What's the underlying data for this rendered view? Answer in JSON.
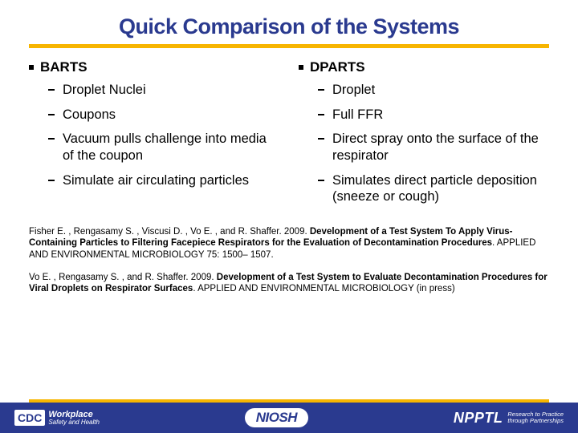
{
  "title": "Quick Comparison of the Systems",
  "colors": {
    "title": "#2a3a8f",
    "accent": "#f7b500",
    "footer_bg": "#2a3a8f",
    "text": "#000000",
    "bg": "#ffffff"
  },
  "left": {
    "head": "BARTS",
    "items": [
      "Droplet Nuclei",
      "Coupons",
      "Vacuum pulls challenge into media of the coupon",
      "Simulate air circulating particles"
    ]
  },
  "right": {
    "head": "DPARTS",
    "items": [
      "Droplet",
      "Full FFR",
      "Direct spray onto the surface of the respirator",
      "Simulates direct particle deposition (sneeze or cough)"
    ]
  },
  "ref1": {
    "authors": "Fisher E. , Rengasamy S. , Viscusi D. , Vo E. , and R. Shaffer. 2009. ",
    "title": "Development of a Test System To Apply Virus-Containing Particles to Filtering Facepiece Respirators for the Evaluation of Decontamination Procedures",
    "tail": ". APPLIED AND ENVIRONMENTAL MICROBIOLOGY 75: 1500– 1507."
  },
  "ref2": {
    "authors": "Vo E. , Rengasamy S. , and R. Shaffer. 2009. ",
    "title": "Development of a Test System to Evaluate Decontamination Procedures for Viral Droplets on Respirator Surfaces",
    "tail": ". APPLIED AND ENVIRONMENTAL MICROBIOLOGY (in press)"
  },
  "footer": {
    "cdc": "CDC",
    "workplace_big": "Workplace",
    "workplace_small": "Safety and Health",
    "niosh": "NIOSH",
    "npptl_abbr": "NPPTL",
    "npptl_sub1": "Research to Practice",
    "npptl_sub2": "through Partnerships"
  }
}
